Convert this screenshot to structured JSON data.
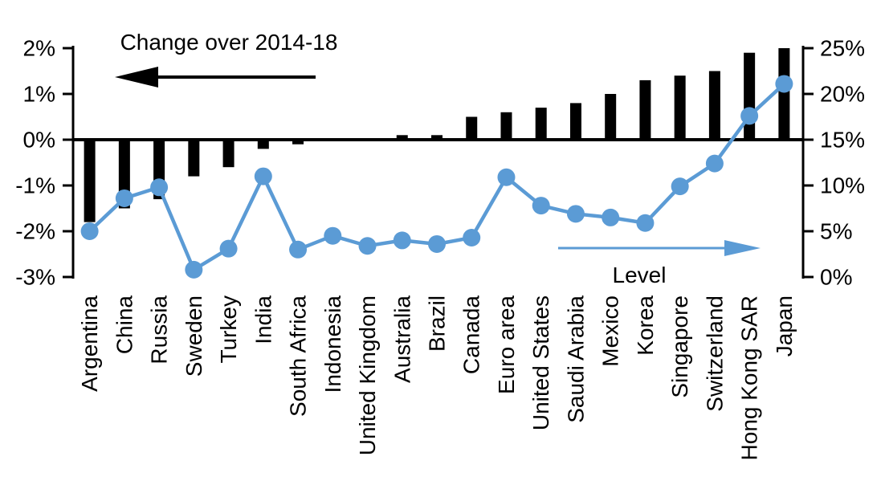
{
  "chart_data": {
    "type": "bar+line-dual-axis",
    "title": "Change over 2014-18",
    "series_labels": {
      "bars": "Change over 2014-18",
      "line": "Level"
    },
    "legend": {
      "bars_annotation": {
        "text": "Change over 2014-18",
        "arrow": "points-left-to-left-axis",
        "color": "#000000"
      },
      "line_annotation": {
        "text": "Level",
        "arrow": "points-right-to-right-axis",
        "color": "#5b9bd5"
      }
    },
    "categories": [
      "Argentina",
      "China",
      "Russia",
      "Sweden",
      "Turkey",
      "India",
      "South Africa",
      "Indonesia",
      "United Kingdom",
      "Australia",
      "Brazil",
      "Canada",
      "Euro area",
      "United States",
      "Saudi Arabia",
      "Mexico",
      "Korea",
      "Singapore",
      "Switzerland",
      "Hong Kong SAR",
      "Japan"
    ],
    "series": [
      {
        "name": "Change over 2014-18",
        "type": "bar",
        "axis": "left",
        "color": "#000000",
        "values": [
          -1.8,
          -1.5,
          -1.3,
          -0.8,
          -0.6,
          -0.2,
          -0.1,
          0,
          0,
          0.1,
          0.1,
          0.5,
          0.6,
          0.7,
          0.8,
          1.0,
          1.3,
          1.4,
          1.5,
          1.9,
          2.0
        ]
      },
      {
        "name": "Level",
        "type": "line",
        "axis": "right",
        "color": "#5b9bd5",
        "values": [
          5.0,
          8.6,
          9.8,
          0.8,
          3.1,
          11.0,
          3.0,
          4.5,
          3.4,
          4.0,
          3.6,
          4.3,
          10.9,
          7.8,
          6.9,
          6.5,
          5.9,
          9.9,
          12.4,
          17.6,
          21.1
        ]
      }
    ],
    "left_axis": {
      "min": -3,
      "max": 2,
      "tick_values": [
        2,
        1,
        0,
        -1,
        -2,
        -3
      ],
      "tick_labels": [
        "2%",
        "1%",
        "0%",
        "-1%",
        "-2%",
        "-3%"
      ]
    },
    "right_axis": {
      "min": 0,
      "max": 25,
      "tick_values": [
        25,
        20,
        15,
        10,
        5,
        0
      ],
      "tick_labels": [
        "25%",
        "20%",
        "15%",
        "10%",
        "5%",
        "0%"
      ]
    },
    "grid": "none",
    "zero_line": true
  },
  "icons": {
    "left_arrow": "black-arrow-pointing-left",
    "right_arrow": "blue-arrow-pointing-right"
  },
  "colors": {
    "bar": "#000000",
    "line": "#5b9bd5",
    "axis": "#000000",
    "background": "#ffffff"
  }
}
